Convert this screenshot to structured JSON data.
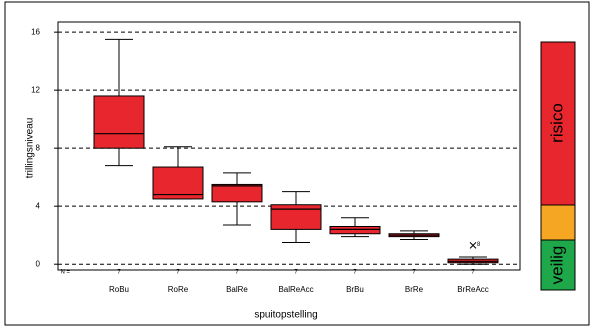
{
  "chart_data": {
    "type": "box",
    "xlabel": "spuitopstelling",
    "ylabel": "trillingsniveau",
    "categories": [
      "RoBu",
      "RoRe",
      "BalRe",
      "BalReAcc",
      "BrBu",
      "BrRe",
      "BrReAcc"
    ],
    "n_label": "N =",
    "n": [
      7,
      7,
      7,
      7,
      7,
      7,
      7
    ],
    "boxes": [
      {
        "whisker_low": 6.8,
        "q1": 8.0,
        "median": 9.0,
        "q3": 11.6,
        "whisker_high": 15.5
      },
      {
        "whisker_low": 4.5,
        "q1": 4.5,
        "median": 4.8,
        "q3": 6.7,
        "whisker_high": 8.1
      },
      {
        "whisker_low": 2.7,
        "q1": 4.3,
        "median": 5.4,
        "q3": 5.5,
        "whisker_high": 6.3
      },
      {
        "whisker_low": 1.5,
        "q1": 2.4,
        "median": 3.8,
        "q3": 4.1,
        "whisker_high": 5.0
      },
      {
        "whisker_low": 1.9,
        "q1": 2.1,
        "median": 2.4,
        "q3": 2.6,
        "whisker_high": 3.2
      },
      {
        "whisker_low": 1.7,
        "q1": 1.9,
        "median": 2.0,
        "q3": 2.1,
        "whisker_high": 2.3
      },
      {
        "whisker_low": 0,
        "q1": 0.1,
        "median": 0.2,
        "q3": 0.35,
        "whisker_high": 0.5
      }
    ],
    "outliers": [
      {
        "category": "BrReAcc",
        "value": 1.3,
        "label": "8"
      }
    ],
    "color": "#e8262d",
    "ylim": [
      -0.4,
      16.7
    ],
    "yticks": [
      0,
      4,
      8,
      12,
      16
    ],
    "grid": true,
    "scale_labels": {
      "high": "risico",
      "low": "veilig"
    }
  }
}
